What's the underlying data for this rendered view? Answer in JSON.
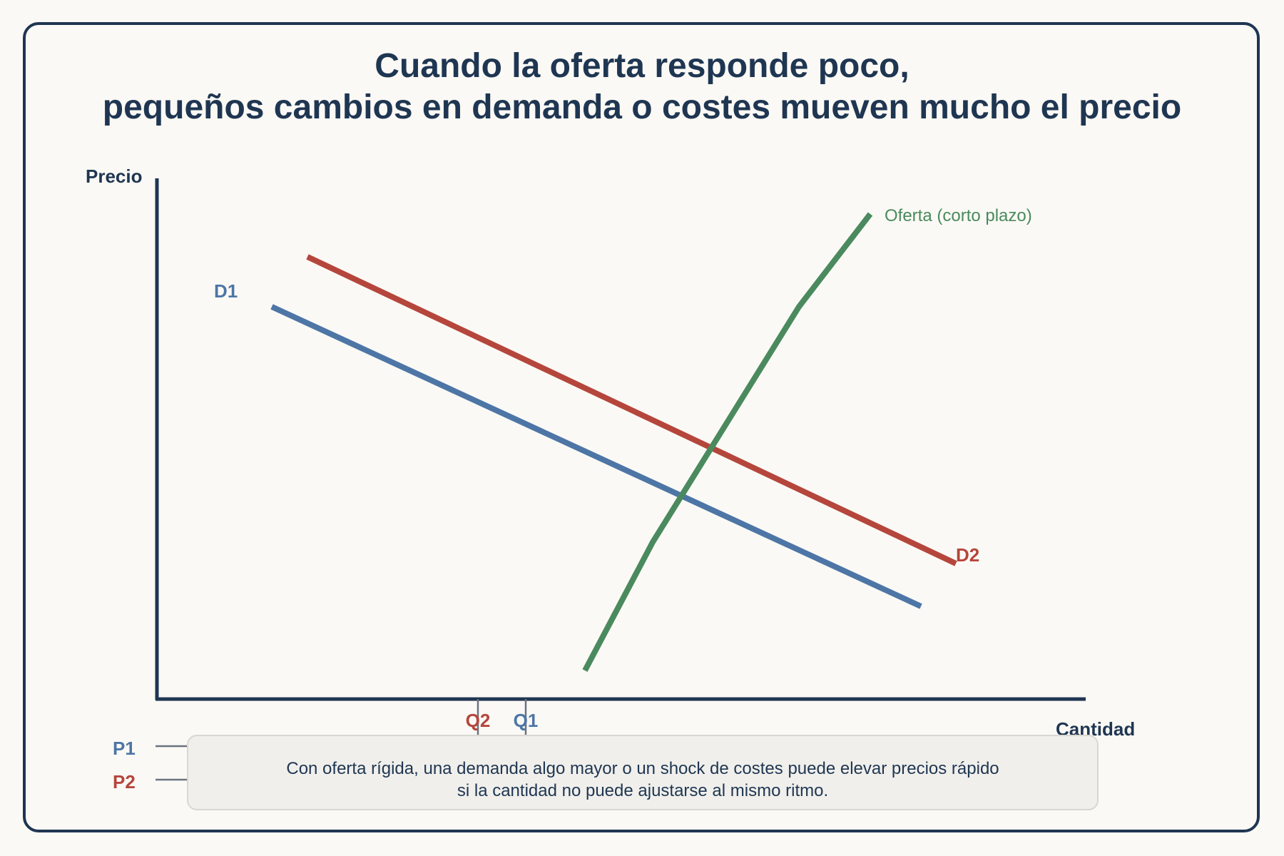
{
  "title": {
    "line1": "Cuando la oferta responde poco,",
    "line2": "pequeños cambios en demanda o costes mueven mucho el precio"
  },
  "axes": {
    "y_label": "Precio",
    "x_label": "Cantidad"
  },
  "curves": {
    "demand1": {
      "label": "D1",
      "color": "#4d76a6"
    },
    "demand2": {
      "label": "D2",
      "color": "#b5463c"
    },
    "supply": {
      "label": "Oferta (corto plazo)",
      "color": "#4a8a5e"
    }
  },
  "markers": {
    "q1": "Q1",
    "q2": "Q2",
    "p1": "P1",
    "p2": "P2"
  },
  "note": {
    "line1": "Con oferta rígida, una demanda algo mayor o un shock de costes puede elevar precios rápido",
    "line2": "si la cantidad no puede ajustarse al mismo ritmo."
  },
  "colors": {
    "axis": "#1f3652",
    "tick": "#6b7380",
    "background": "#fbf9f5"
  }
}
